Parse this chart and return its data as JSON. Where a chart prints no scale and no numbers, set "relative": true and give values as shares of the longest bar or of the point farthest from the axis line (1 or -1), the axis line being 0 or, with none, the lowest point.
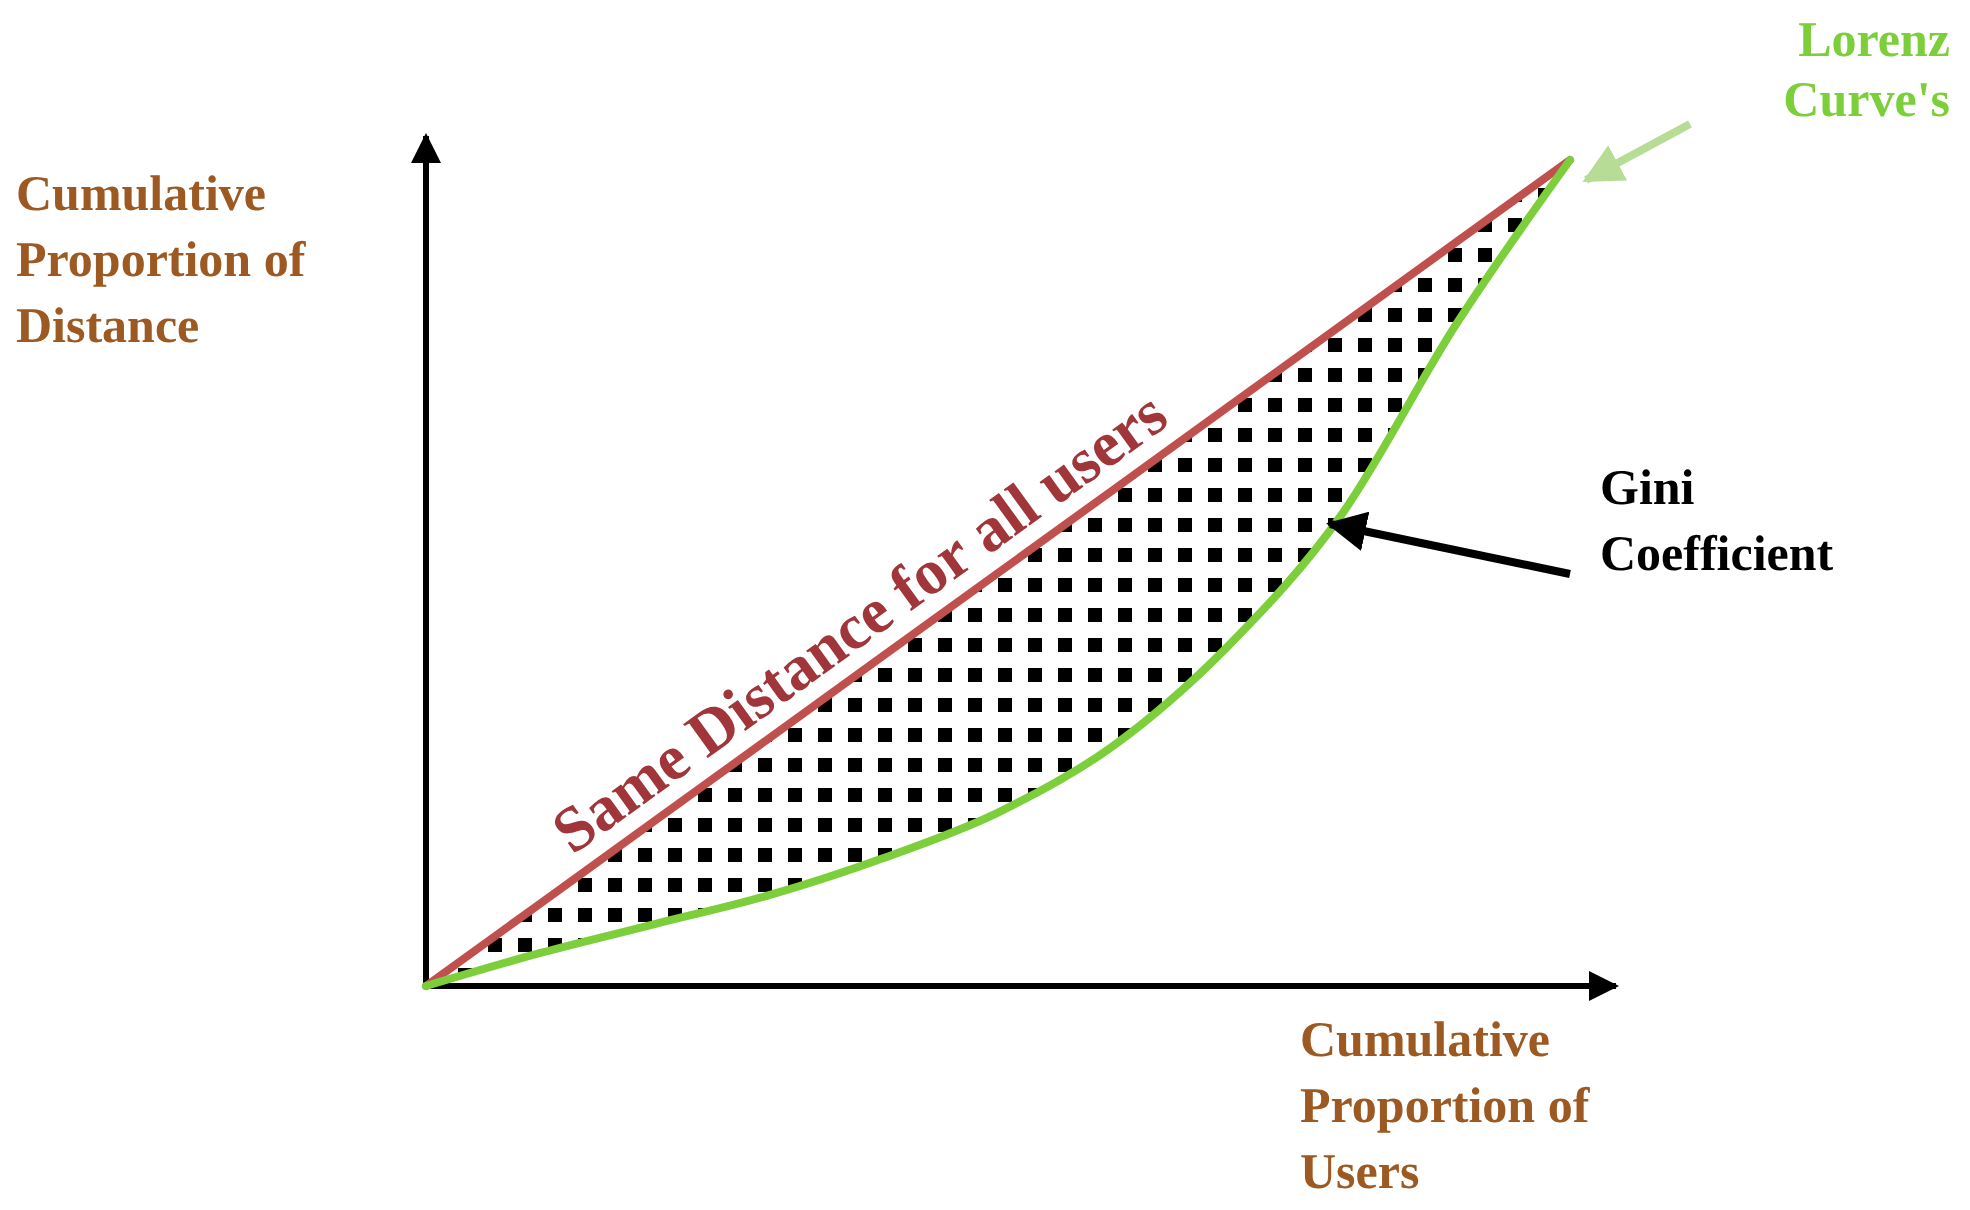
{
  "chart_data": {
    "type": "line",
    "relative": true,
    "xlabel": "Cumulative Proportion of Users",
    "ylabel": "Cumulative Proportion of Distance",
    "categories": [
      null,
      null,
      null,
      null,
      null,
      null,
      null,
      null,
      null,
      null,
      null
    ],
    "series": [
      {
        "name": "Same Distance for all users",
        "color": "#c0504d",
        "values": [
          0,
          0.1,
          0.2,
          0.3,
          0.4,
          0.5,
          0.6,
          0.7,
          0.8,
          0.9,
          1
        ]
      },
      {
        "name": "Lorenz Curve's",
        "color": "#7ccf3a",
        "values": [
          0,
          0.04,
          0.075,
          0.11,
          0.155,
          0.21,
          0.29,
          0.41,
          0.57,
          0.8,
          1
        ],
        "lower": [
          0,
          0.04,
          0.075,
          0.11,
          0.155,
          0.21,
          0.29,
          0.41,
          0.57,
          0.8,
          1
        ],
        "upper": [
          0,
          0.1,
          0.2,
          0.3,
          0.4,
          0.5,
          0.6,
          0.7,
          0.8,
          0.9,
          1
        ]
      }
    ],
    "annotations": [
      "Gini Coefficient"
    ]
  }
}
